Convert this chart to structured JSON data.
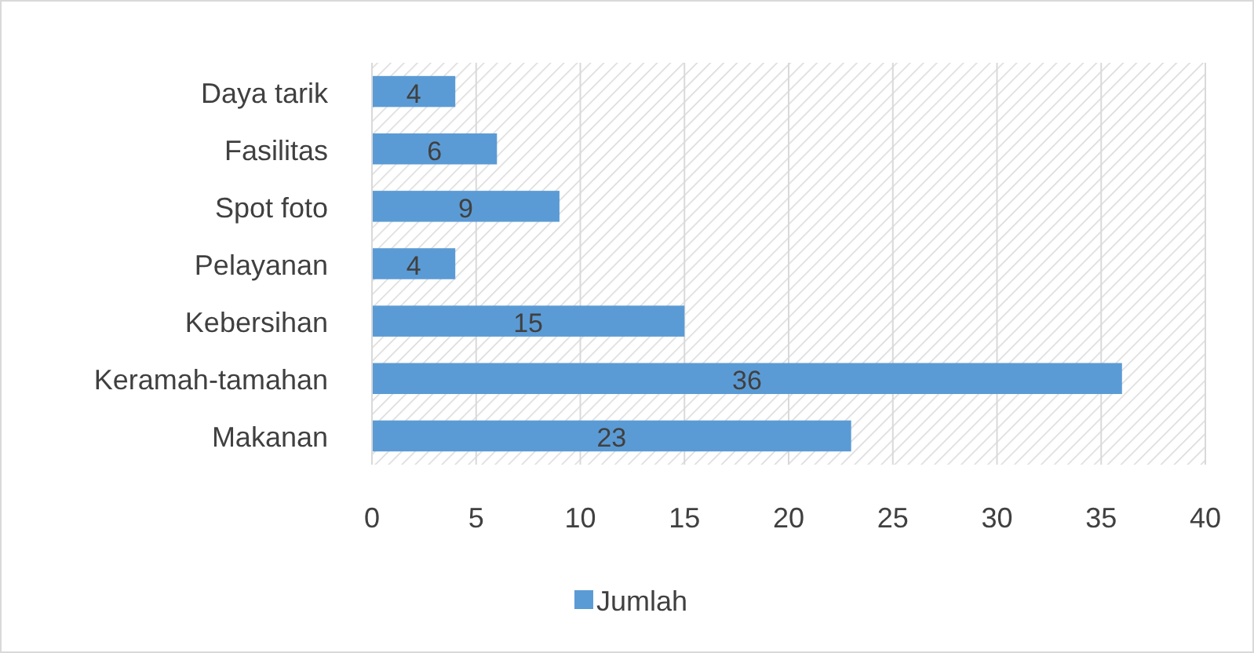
{
  "chart_data": {
    "type": "bar",
    "orientation": "horizontal",
    "categories": [
      "Daya tarik",
      "Fasilitas",
      "Spot foto",
      "Pelayanan",
      "Kebersihan",
      "Keramah-tamahan",
      "Makanan"
    ],
    "series": [
      {
        "name": "Jumlah",
        "color": "#5b9bd5",
        "values": [
          4,
          6,
          9,
          4,
          15,
          36,
          23
        ]
      }
    ],
    "xlim": [
      0,
      40
    ],
    "xticks": [
      0,
      5,
      10,
      15,
      20,
      25,
      30,
      35,
      40
    ],
    "grid": "x",
    "legend": "bottom",
    "data_labels": true
  }
}
